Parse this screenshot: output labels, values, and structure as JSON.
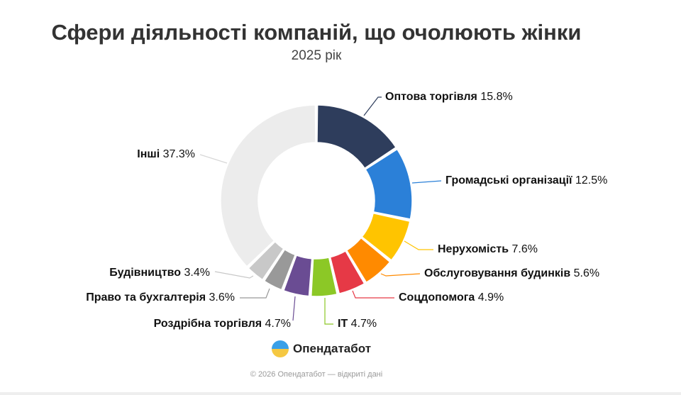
{
  "chart_data": {
    "type": "pie",
    "variant": "donut",
    "title": "Сфери діяльності компаній, що очолюють жінки",
    "subtitle": "2025 рік",
    "slices": [
      {
        "label": "Оптова торгівля",
        "value": 15.8,
        "value_label": "15.8%",
        "color": "#2e3d5c"
      },
      {
        "label": "Громадські організації",
        "value": 12.5,
        "value_label": "12.5%",
        "color": "#2b80d8"
      },
      {
        "label": "Нерухомість",
        "value": 7.6,
        "value_label": "7.6%",
        "color": "#ffc400"
      },
      {
        "label": "Обслуговування будинків",
        "value": 5.6,
        "value_label": "5.6%",
        "color": "#ff8a00"
      },
      {
        "label": "Соцдопомога",
        "value": 4.9,
        "value_label": "4.9%",
        "color": "#e63946"
      },
      {
        "label": "IT",
        "value": 4.7,
        "value_label": "4.7%",
        "color": "#8cc826"
      },
      {
        "label": "Роздрібна торгівля",
        "value": 4.7,
        "value_label": "4.7%",
        "color": "#6a4c93"
      },
      {
        "label": "Право та бухгалтерія",
        "value": 3.6,
        "value_label": "3.6%",
        "color": "#999999"
      },
      {
        "label": "Будівництво",
        "value": 3.4,
        "value_label": "3.4%",
        "color": "#c8c8c8"
      },
      {
        "label": "Інші",
        "value": 37.3,
        "value_label": "37.3%",
        "color": "#ececec"
      }
    ]
  },
  "branding": {
    "logo_text": "Опендатабот"
  },
  "footer": "© 2026 Опендатабот — відкриті дані"
}
